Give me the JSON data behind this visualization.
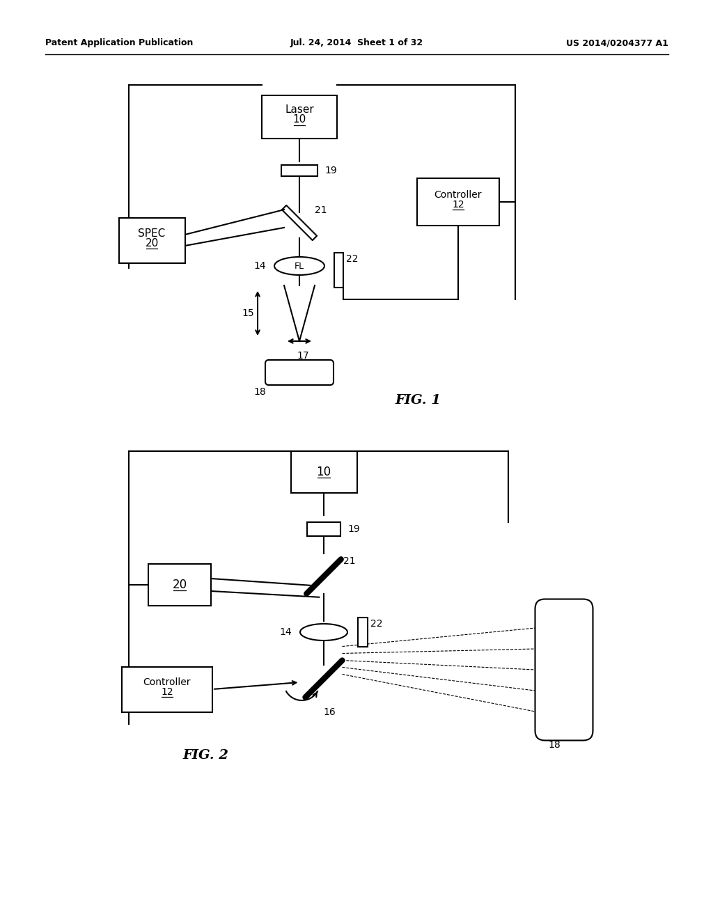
{
  "bg_color": "#ffffff",
  "header_left": "Patent Application Publication",
  "header_mid": "Jul. 24, 2014  Sheet 1 of 32",
  "header_right": "US 2014/0204377 A1",
  "fig1_label": "FIG. 1",
  "fig2_label": "FIG. 2",
  "line_color": "#000000",
  "font_size_header": 9,
  "font_size_label": 11,
  "font_size_ref": 10
}
